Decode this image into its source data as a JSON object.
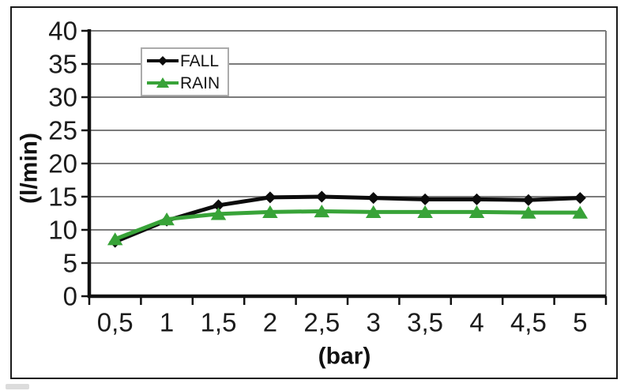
{
  "figure": {
    "background": "#ffffff",
    "frame_border_color": "#1a1a1a",
    "gridline_color": "#7b7b7b",
    "axis_color": "#111111",
    "tick_label_color": "#1c1c1c",
    "legend_border_color": "#ababab"
  },
  "chart_data": {
    "type": "line",
    "title": "",
    "xlabel": "(bar)",
    "ylabel": "(l/min)",
    "x_tick_labels": [
      "0,5",
      "1",
      "1,5",
      "2",
      "2,5",
      "3",
      "3,5",
      "4",
      "4,5",
      "5"
    ],
    "x_values": [
      0.5,
      1,
      1.5,
      2,
      2.5,
      3,
      3.5,
      4,
      4.5,
      5
    ],
    "y_ticks": [
      0,
      5,
      10,
      15,
      20,
      25,
      30,
      35,
      40
    ],
    "y_tick_labels": [
      "0",
      "5",
      "10",
      "15",
      "20",
      "25",
      "30",
      "35",
      "40"
    ],
    "ylim": [
      0,
      40
    ],
    "grid": true,
    "legend_position": "top-left-inside",
    "series": [
      {
        "name": "FALL",
        "color": "#0c0c0c",
        "marker": "diamond",
        "values": [
          8.2,
          11.4,
          13.7,
          14.9,
          15.0,
          14.8,
          14.6,
          14.6,
          14.5,
          14.8
        ]
      },
      {
        "name": "RAIN",
        "color": "#38a338",
        "marker": "triangle-up",
        "values": [
          8.6,
          11.6,
          12.4,
          12.7,
          12.8,
          12.7,
          12.7,
          12.7,
          12.6,
          12.6
        ]
      }
    ]
  }
}
